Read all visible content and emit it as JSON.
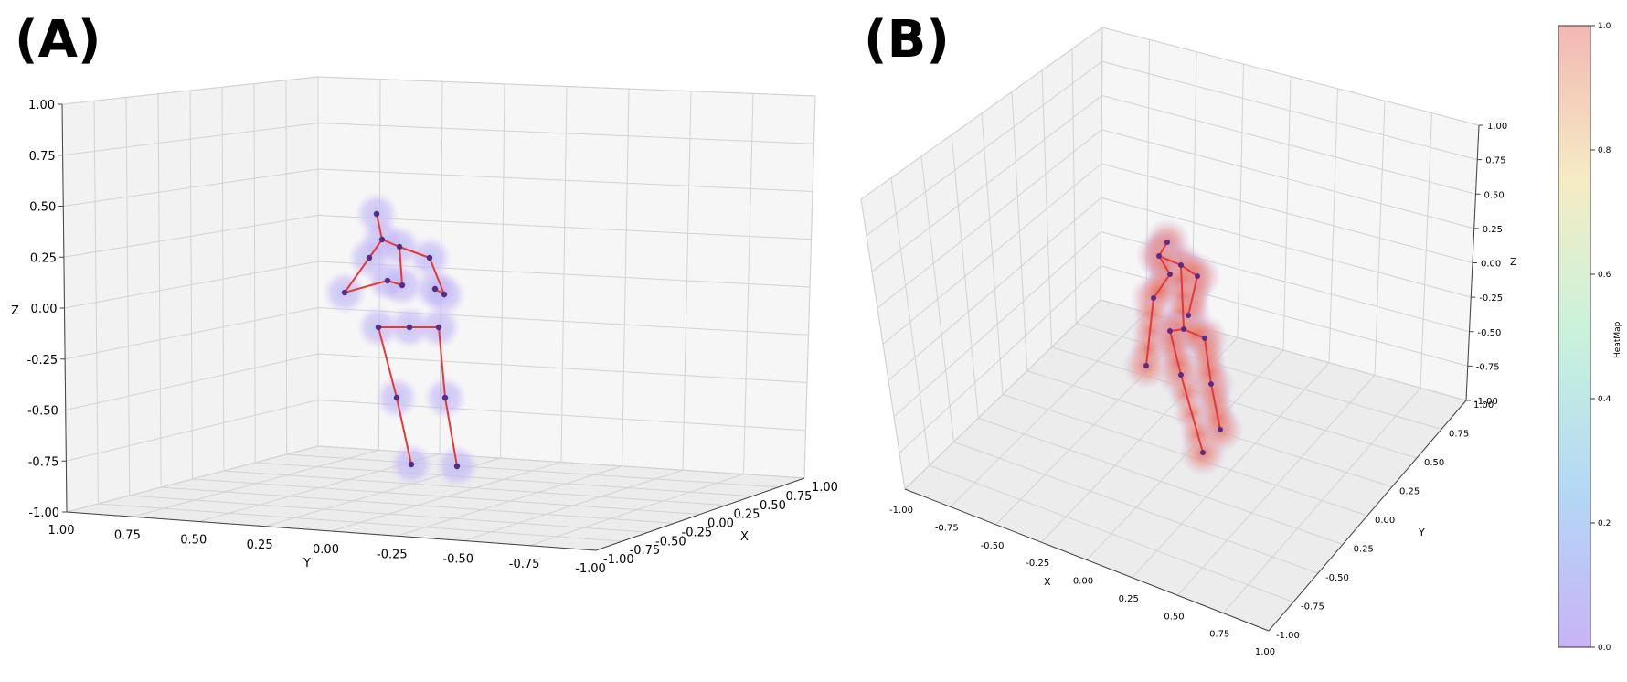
{
  "panels": [
    {
      "label": "(A)"
    },
    {
      "label": "(B)"
    }
  ],
  "chart_data": [
    {
      "type": "scatter",
      "panel": "(A)",
      "view": "3d-skeleton-joints-with-heatmap-clouds",
      "xlabel": "X",
      "ylabel": "Y",
      "zlabel": "Z",
      "xlim": [
        -1,
        1
      ],
      "ylim": [
        -1,
        1
      ],
      "zlim": [
        -1,
        1
      ],
      "x_ticks": [
        "-1.00",
        "-0.75",
        "-0.50",
        "-0.25",
        "0.00",
        "0.25",
        "0.50",
        "0.75",
        "1.00"
      ],
      "y_ticks": [
        "1.00",
        "0.75",
        "0.50",
        "0.25",
        "0.00",
        "-0.25",
        "-0.50",
        "-0.75",
        "-1.00"
      ],
      "z_ticks": [
        "1.00",
        "0.75",
        "0.50",
        "0.25",
        "0.00",
        "-0.25",
        "-0.50",
        "-0.75",
        "-1.00"
      ],
      "grid": true,
      "bone_color": "#e53935",
      "joint_color": "#5b2a86",
      "cloud_color": "#b9a4f5"
    },
    {
      "type": "scatter",
      "panel": "(B)",
      "view": "3d-skeleton-joints-with-heatmap-clouds",
      "xlabel": "X",
      "ylabel": "Y",
      "zlabel": "Z",
      "xlim": [
        -1,
        1
      ],
      "ylim": [
        -1,
        1
      ],
      "zlim": [
        -1,
        1
      ],
      "x_ticks": [
        "-1.00",
        "-0.75",
        "-0.50",
        "-0.25",
        "0.00",
        "0.25",
        "0.50",
        "0.75",
        "1.00"
      ],
      "y_ticks": [
        "-1.00",
        "-0.75",
        "-0.50",
        "-0.25",
        "0.00",
        "0.25",
        "0.50",
        "0.75",
        "1.00"
      ],
      "z_ticks": [
        "-1.00",
        "-0.75",
        "-0.50",
        "-0.25",
        "0.00",
        "0.25",
        "0.50",
        "0.75",
        "1.00"
      ],
      "grid": true,
      "bone_color": "#e53935",
      "joint_color": "#5b2a86",
      "cloud_color": "#e57373"
    }
  ],
  "colorbar": {
    "label": "HeatMap",
    "ticks": [
      "1.0",
      "0.8",
      "0.6",
      "0.4",
      "0.2",
      "0.0"
    ],
    "range": [
      0,
      1
    ],
    "colors": [
      "#c9b3f7",
      "#b3d8f5",
      "#c8f2dc",
      "#f5ecc4",
      "#f2b8b3"
    ]
  }
}
